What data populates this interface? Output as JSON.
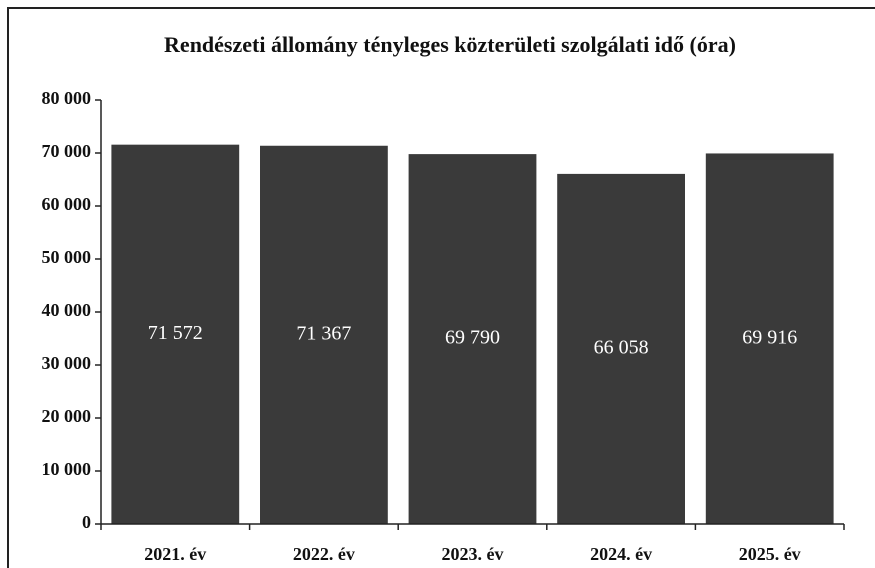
{
  "chart_data": {
    "type": "bar",
    "title": "Rendészeti állomány tényleges közterületi szolgálati idő (óra)",
    "categories": [
      "2021. év",
      "2022. év",
      "2023. év",
      "2024. év",
      "2025. év"
    ],
    "values": [
      71572,
      71367,
      69790,
      66058,
      69916
    ],
    "value_labels": [
      "71 572",
      "71 367",
      "69 790",
      "66 058",
      "69 916"
    ],
    "color": "#3a3a3a",
    "ylim": [
      0,
      80000
    ],
    "yticks": [
      0,
      {
        "value": 10000,
        "label": "10 000"
      },
      {
        "value": 20000,
        "label": "20 000"
      },
      {
        "value": 30000,
        "label": "30 000"
      },
      {
        "value": 40000,
        "label": "40 000"
      },
      {
        "value": 50000,
        "label": "50 000"
      },
      {
        "value": 60000,
        "label": "60 000"
      },
      {
        "value": 70000,
        "label": "70 000"
      },
      {
        "value": 80000,
        "label": "80 000"
      }
    ],
    "grid": false
  }
}
